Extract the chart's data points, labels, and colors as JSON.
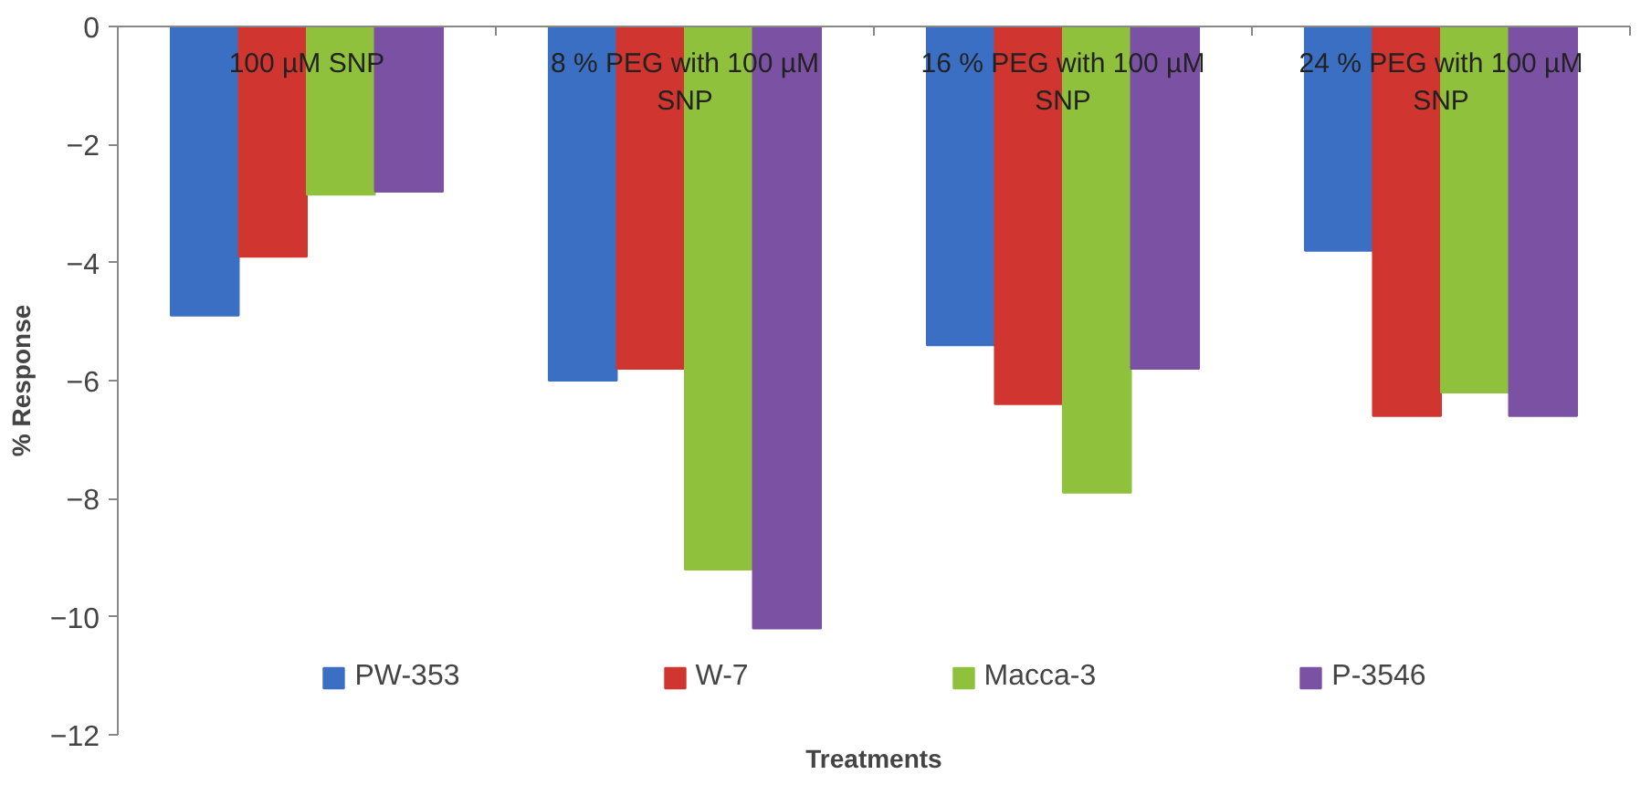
{
  "chart_data": {
    "type": "bar",
    "xlabel": "Treatments",
    "ylabel": "% Response",
    "categories": [
      "100 µM SNP",
      "8 % PEG with 100 µM SNP",
      "16 % PEG with 100 µM SNP",
      "24 % PEG with 100 µM SNP"
    ],
    "series": [
      {
        "name": "PW-353",
        "color": "#3b6fc4",
        "values": [
          -4.9,
          -6.0,
          -5.4,
          -3.8
        ]
      },
      {
        "name": "W-7",
        "color": "#d0352f",
        "values": [
          -3.9,
          -5.8,
          -6.4,
          -6.6
        ]
      },
      {
        "name": "Macca-3",
        "color": "#8fc13c",
        "values": [
          -2.85,
          -9.2,
          -7.9,
          -6.2
        ]
      },
      {
        "name": "P-3546",
        "color": "#7b51a4",
        "values": [
          -2.8,
          -10.2,
          -5.8,
          -6.6
        ]
      }
    ],
    "ylim": [
      -12,
      0
    ],
    "yticks": [
      0,
      -2,
      -4,
      -6,
      -8,
      -10,
      -12
    ],
    "grid": false,
    "legend": "bottom"
  }
}
